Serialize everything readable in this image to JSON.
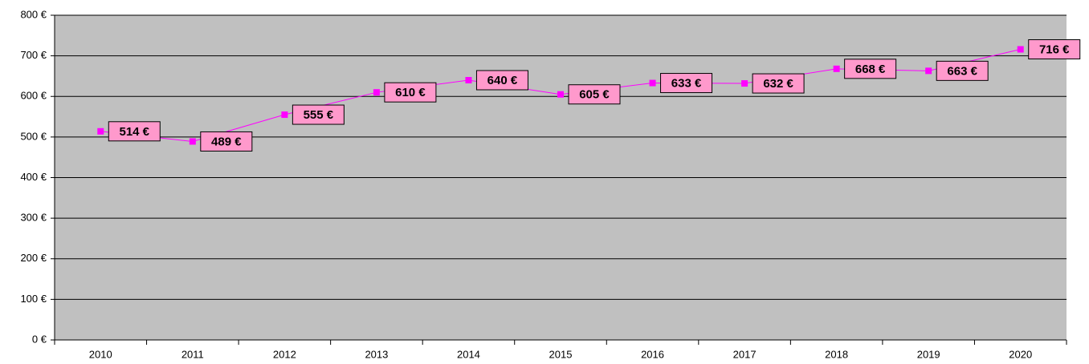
{
  "chart_data": {
    "type": "line",
    "categories": [
      "2010",
      "2011",
      "2012",
      "2013",
      "2014",
      "2015",
      "2016",
      "2017",
      "2018",
      "2019",
      "2020"
    ],
    "series": [
      {
        "color": "#ff00ff",
        "values": [
          514,
          489,
          555,
          610,
          640,
          605,
          633,
          632,
          668,
          663,
          716
        ],
        "value_labels": [
          "514 €",
          "489 €",
          "555 €",
          "610 €",
          "640 €",
          "605 €",
          "633 €",
          "632 €",
          "668 €",
          "663 €",
          "716 €"
        ]
      }
    ],
    "ylim": [
      0,
      800
    ],
    "yticks": [
      {
        "value": 0,
        "label": "0 €"
      },
      {
        "value": 100,
        "label": "100 €"
      },
      {
        "value": 200,
        "label": "200 €"
      },
      {
        "value": 300,
        "label": "300 €"
      },
      {
        "value": 400,
        "label": "400 €"
      },
      {
        "value": 500,
        "label": "500 €"
      },
      {
        "value": 600,
        "label": "600 €"
      },
      {
        "value": 700,
        "label": "700 €"
      },
      {
        "value": 800,
        "label": "800 €"
      }
    ],
    "grid": true,
    "background": "#c0c0c0",
    "label_fill": "#ff99cc"
  }
}
